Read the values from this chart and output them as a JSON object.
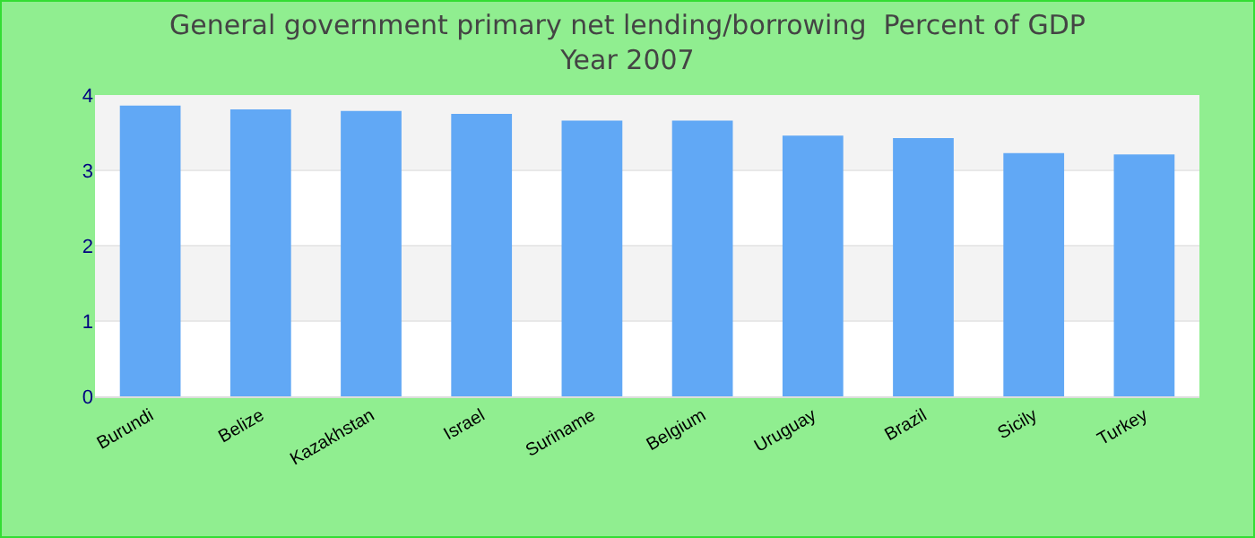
{
  "chart_data": {
    "type": "bar",
    "title": "General government primary net lending/borrowing  Percent of GDP",
    "subtitle": "Year 2007",
    "categories": [
      "Burundi",
      "Belize",
      "Kazakhstan",
      "Israel",
      "Suriname",
      "Belgium",
      "Uruguay",
      "Brazil",
      "Sicily",
      "Turkey"
    ],
    "values": [
      3.86,
      3.81,
      3.79,
      3.75,
      3.66,
      3.66,
      3.46,
      3.43,
      3.23,
      3.21
    ],
    "color": "#61a8f5",
    "ylim": [
      0,
      4
    ],
    "yticks": [
      0,
      1,
      2,
      3,
      4
    ],
    "grid": true
  }
}
